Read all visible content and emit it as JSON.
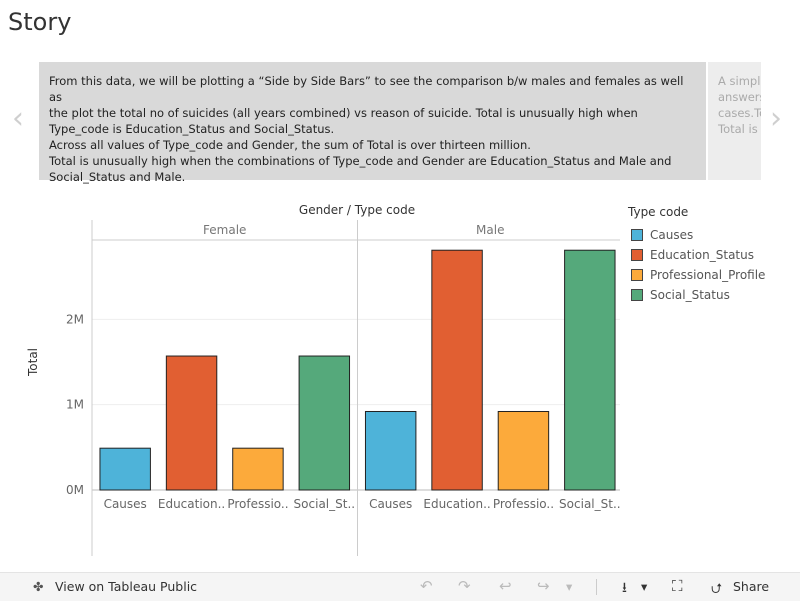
{
  "story": {
    "title": "Story"
  },
  "caption": {
    "lines": [
      "From this data, we will be plotting a “Side by Side Bars” to see the comparison b/w males and females as well as",
      "the plot the total no of suicides (all years combined) vs reason of suicide.      Total is unusually high when",
      "Type_code is Education_Status and Social_Status.",
      "Across all values of Type_code and Gender, the sum of Total is over thirteen million.",
      "Total is unusually high when the combinations of Type_code and Gender are Education_Status and Male and",
      "Social_Status and Male."
    ],
    "next_lines": [
      "A simple",
      "answers",
      "cases.To",
      "Total is"
    ]
  },
  "nav": {
    "prev": "‹",
    "next": "›"
  },
  "chart_data": {
    "type": "bar",
    "title": "Gender  /  Type code",
    "ylabel": "Total",
    "ylim": [
      0,
      3000000
    ],
    "yticks": [
      {
        "value": 0,
        "label": "0M"
      },
      {
        "value": 1000000,
        "label": "1M"
      },
      {
        "value": 2000000,
        "label": "2M"
      }
    ],
    "groups": [
      "Female",
      "Male"
    ],
    "categories": [
      "Causes",
      "Education_Status",
      "Professional_Profile",
      "Social_Status"
    ],
    "tick_labels": [
      "Causes",
      "Education..",
      "Professio..",
      "Social_St.."
    ],
    "colors": [
      "#4eb3d9",
      "#e15f32",
      "#fcaa3b",
      "#55a97b"
    ],
    "series": [
      {
        "name": "Female",
        "values": [
          490000,
          1570000,
          490000,
          1570000
        ]
      },
      {
        "name": "Male",
        "values": [
          920000,
          2810000,
          920000,
          2810000
        ]
      }
    ]
  },
  "legend": {
    "title": "Type code"
  },
  "toolbar": {
    "view_label": "View on Tableau Public",
    "share_label": "Share",
    "undo_icon": "↶",
    "redo_icon": "↷",
    "revert_icon": "↩",
    "refresh_icon": "↪",
    "dropdown_icon": "▾",
    "download_icon": "⭳",
    "fullscreen_icon": "⛶",
    "share_icon": "⮍",
    "tableau_icon": "✤"
  }
}
